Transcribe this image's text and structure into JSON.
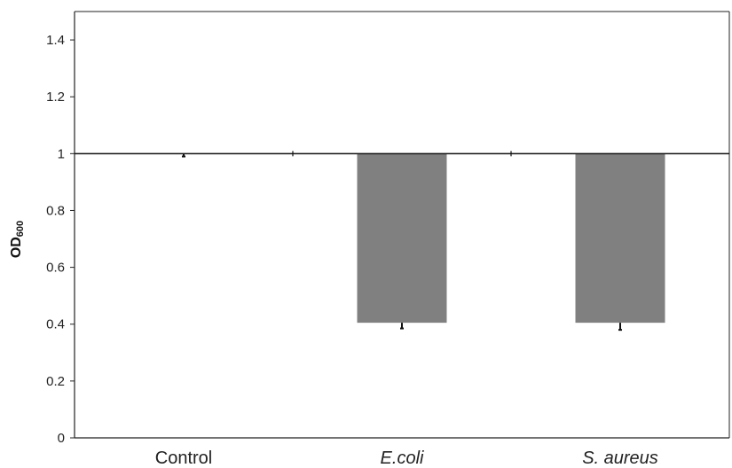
{
  "chart_data": {
    "type": "bar",
    "categories": [
      "Control",
      "E.coli",
      "S. aureus"
    ],
    "italic_categories": [
      "E.coli",
      "S. aureus"
    ],
    "values": [
      1.0,
      0.405,
      0.405
    ],
    "error_low": [
      0.99,
      0.385,
      0.38
    ],
    "baseline": 1,
    "ylabel": "OD600",
    "ylim": [
      0,
      1.5
    ],
    "yticks": [
      "0",
      "0.2",
      "0.4",
      "0.6",
      "0.8",
      "1",
      "1.2",
      "1.4"
    ],
    "ytick_values": [
      0,
      0.2,
      0.4,
      0.6,
      0.8,
      1,
      1.2,
      1.4
    ],
    "grid": false,
    "legend": "none",
    "bar_color": "#808080"
  }
}
